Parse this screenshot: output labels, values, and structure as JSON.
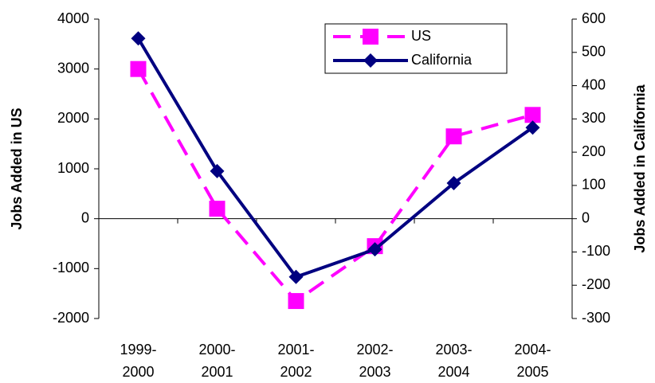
{
  "chart_data": {
    "type": "line",
    "categories": [
      "1999-\n2000",
      "2000-\n2001",
      "2001-\n2002",
      "2002-\n2003",
      "2003-\n2004",
      "2004-\n2005"
    ],
    "series": [
      {
        "name": "US",
        "color": "#ff00ff",
        "values": [
          3000,
          200,
          -1650,
          -550,
          1650,
          2080
        ]
      },
      {
        "name": "California",
        "color": "#000080",
        "axis": "y2",
        "values": [
          542,
          143,
          -175,
          -92,
          107,
          274
        ]
      }
    ],
    "ylabel": "Jobs Added in US",
    "y2label": "Jobs Added in California",
    "ylim": [
      -2000,
      4000
    ],
    "yticks": [
      -2000,
      -1000,
      0,
      1000,
      2000,
      3000,
      4000
    ],
    "y2lim": [
      -300,
      600
    ],
    "y2ticks": [
      -300,
      -200,
      -100,
      0,
      100,
      200,
      300,
      400,
      500,
      600
    ],
    "legend": "top-right"
  }
}
